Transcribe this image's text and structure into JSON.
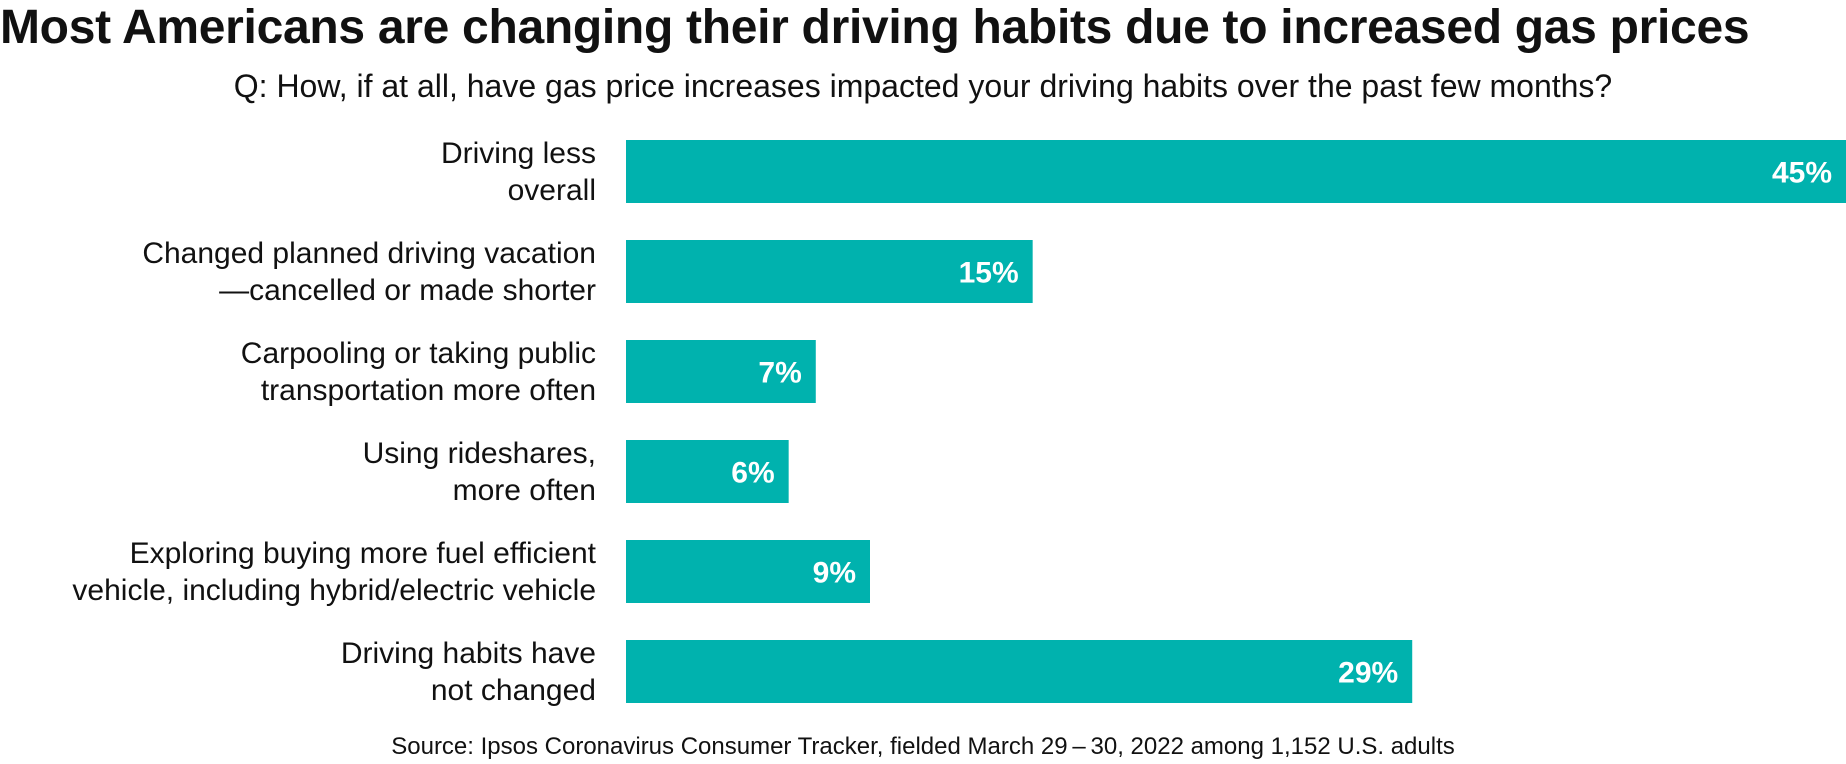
{
  "chart_data": {
    "type": "bar",
    "orientation": "horizontal",
    "title": "Most Americans are changing their driving habits due to increased gas prices",
    "subtitle": "Q: How, if at all, have gas price increases impacted your driving habits over the past few months?",
    "categories": [
      [
        "Driving less",
        "overall"
      ],
      [
        "Changed planned driving vacation",
        "—cancelled or made shorter"
      ],
      [
        "Carpooling or taking public",
        "transportation more often"
      ],
      [
        "Using rideshares,",
        "more often"
      ],
      [
        "Exploring buying more fuel efficient",
        "vehicle, including hybrid/electric vehicle"
      ],
      [
        "Driving habits have",
        "not changed"
      ]
    ],
    "values": [
      45,
      15,
      7,
      6,
      9,
      29
    ],
    "value_labels": [
      "45%",
      "15%",
      "7%",
      "6%",
      "9%",
      "29%"
    ],
    "bar_color": "#00B2AE",
    "xlim": [
      0,
      45
    ],
    "grid": false,
    "legend": "none",
    "source": "Source: Ipsos Coronavirus Consumer Tracker, fielded March 29 – 30, 2022 among 1,152 U.S. adults"
  }
}
